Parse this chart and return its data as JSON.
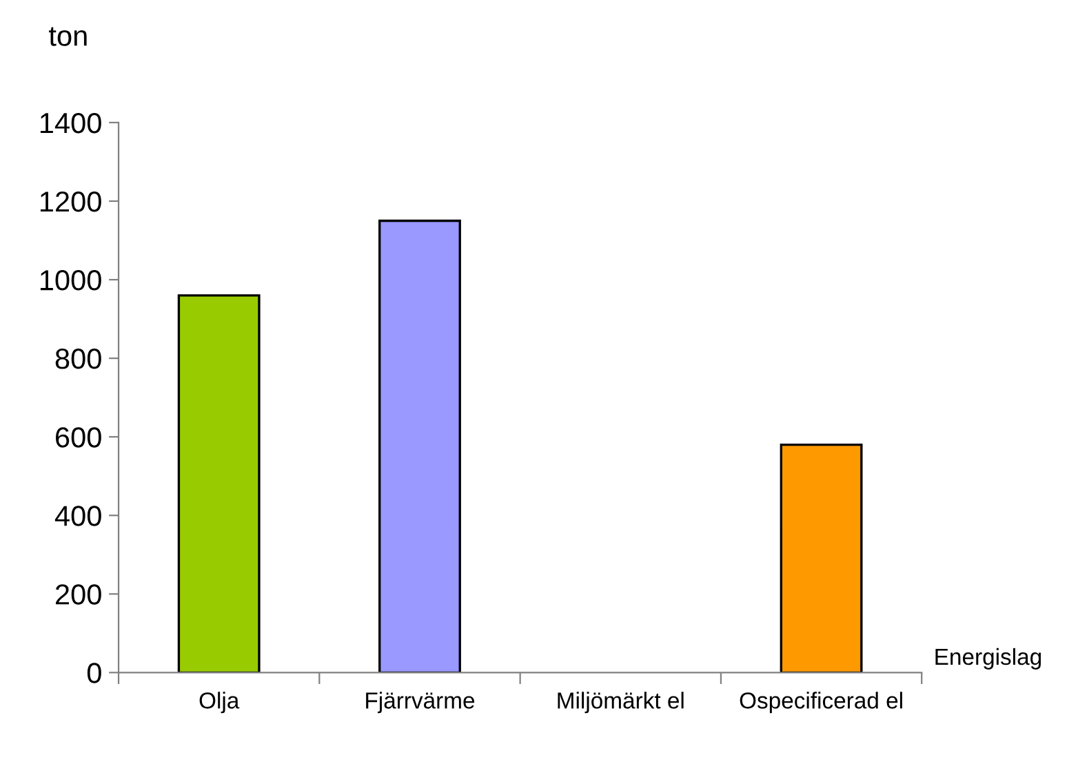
{
  "chart_data": {
    "type": "bar",
    "ylabel": "ton",
    "xlabel": "Energislag",
    "categories": [
      "Olja",
      "Fjärrvärme",
      "Miljömärkt el",
      "Ospecificerad el"
    ],
    "values": [
      960,
      1150,
      0,
      580
    ],
    "colors": [
      "#99cc00",
      "#9999ff",
      "#ffffff",
      "#ff9900"
    ],
    "ylim": [
      0,
      1400
    ],
    "yticks": [
      0,
      200,
      400,
      600,
      800,
      1000,
      1200,
      1400
    ],
    "grid": false,
    "legend": false
  }
}
